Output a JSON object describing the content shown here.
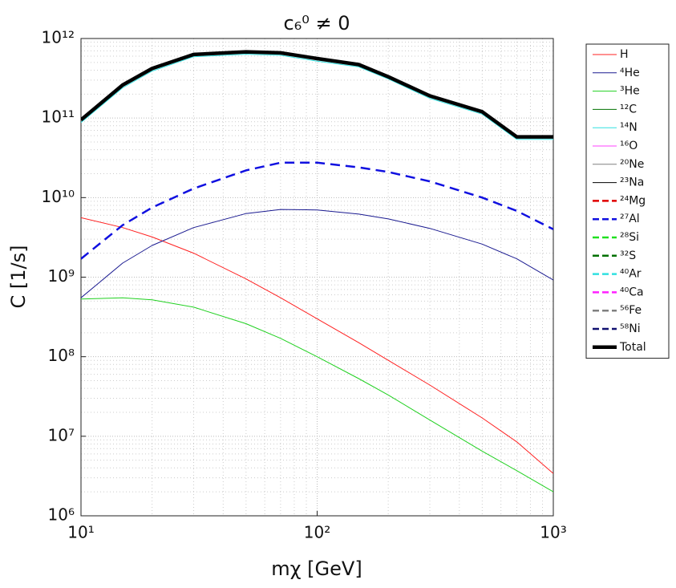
{
  "chart_data": {
    "type": "line",
    "title": "c₆⁰ ≠ 0",
    "x_label": "mχ [GeV]",
    "y_label": "C [1/s]",
    "x": [
      10,
      15,
      20,
      30,
      50,
      70,
      100,
      150,
      200,
      300,
      500,
      700,
      1000
    ],
    "xscale": "log",
    "yscale": "log",
    "grid": true,
    "legend": "outside right",
    "xlim": [
      10,
      1000
    ],
    "xticks": [
      {
        "value": 10,
        "label": "10¹"
      },
      {
        "value": 100,
        "label": "10²"
      },
      {
        "value": 1000,
        "label": "10³"
      }
    ],
    "ylim": [
      1000000,
      1000000000000
    ],
    "yticks": [
      {
        "value": 1000000,
        "label": "10⁶"
      },
      {
        "value": 10000000,
        "label": "10⁷"
      },
      {
        "value": 100000000,
        "label": "10⁸"
      },
      {
        "value": 1000000000,
        "label": "10⁹"
      },
      {
        "value": 10000000000,
        "label": "10¹⁰"
      },
      {
        "value": 100000000000,
        "label": "10¹¹"
      },
      {
        "value": 1000000000000,
        "label": "10¹²"
      }
    ],
    "series": [
      {
        "name": "H",
        "color": "#ff2020",
        "dashed": false,
        "width": 1,
        "values": [
          5600000000,
          4200000000,
          3200000000,
          2000000000,
          950000000,
          550000000,
          300000000,
          150000000,
          90000000,
          44000000,
          17000000,
          8500000,
          3400000
        ]
      },
      {
        "name": "⁴He",
        "color": "#1a1a90",
        "dashed": false,
        "width": 1,
        "values": [
          550000000,
          1500000000,
          2500000000,
          4200000000,
          6300000000,
          7100000000,
          7000000000,
          6200000000,
          5400000000,
          4100000000,
          2600000000,
          1700000000,
          920000000
        ]
      },
      {
        "name": "³He",
        "color": "#20d020",
        "dashed": false,
        "width": 1,
        "values": [
          530000000,
          550000000,
          520000000,
          420000000,
          260000000,
          170000000,
          100000000,
          53000000,
          33000000,
          16000000,
          6500000,
          3700000,
          2000000
        ]
      },
      {
        "name": "¹²C",
        "color": "#007000",
        "dashed": false,
        "width": 1,
        "values": [
          null,
          null,
          null,
          null,
          null,
          null,
          null,
          null,
          null,
          null,
          null,
          null,
          null
        ]
      },
      {
        "name": "¹⁴N",
        "color": "#30e0e0",
        "dashed": false,
        "width": 1,
        "values": [
          88000000000,
          240000000000,
          390000000000,
          590000000000,
          635000000000,
          615000000000,
          520000000000,
          440000000000,
          310000000000,
          177000000000,
          112000000000,
          54000000000,
          54000000000
        ]
      },
      {
        "name": "¹⁶O",
        "color": "#ff40ff",
        "dashed": false,
        "width": 1,
        "values": [
          null,
          null,
          null,
          null,
          null,
          null,
          null,
          null,
          null,
          null,
          null,
          null,
          null
        ]
      },
      {
        "name": "²⁰Ne",
        "color": "#808080",
        "dashed": false,
        "width": 1,
        "values": [
          null,
          null,
          null,
          null,
          null,
          null,
          null,
          null,
          null,
          null,
          null,
          null,
          null
        ]
      },
      {
        "name": "²³Na",
        "color": "#000000",
        "dashed": false,
        "width": 1,
        "values": [
          null,
          null,
          null,
          null,
          null,
          null,
          null,
          null,
          null,
          null,
          null,
          null,
          null
        ]
      },
      {
        "name": "²⁴Mg",
        "color": "#e00000",
        "dashed": true,
        "width": 2.5,
        "values": [
          null,
          null,
          null,
          null,
          null,
          null,
          null,
          null,
          null,
          null,
          null,
          null,
          null
        ]
      },
      {
        "name": "²⁷Al",
        "color": "#1010e0",
        "dashed": true,
        "width": 2.5,
        "values": [
          1700000000,
          4500000000,
          7500000000,
          13000000000,
          22000000000,
          27500000000,
          27500000000,
          24000000000,
          21000000000,
          16000000000,
          10000000000,
          6800000000,
          4000000000
        ]
      },
      {
        "name": "²⁸Si",
        "color": "#20e020",
        "dashed": true,
        "width": 2.5,
        "values": [
          null,
          null,
          null,
          null,
          null,
          null,
          null,
          null,
          null,
          null,
          null,
          null,
          null
        ]
      },
      {
        "name": "³²S",
        "color": "#007000",
        "dashed": true,
        "width": 2.5,
        "values": [
          null,
          null,
          null,
          null,
          null,
          null,
          null,
          null,
          null,
          null,
          null,
          null,
          null
        ]
      },
      {
        "name": "⁴⁰Ar",
        "color": "#30e0e0",
        "dashed": true,
        "width": 2.5,
        "values": [
          null,
          null,
          null,
          null,
          null,
          null,
          null,
          null,
          null,
          null,
          null,
          null,
          null
        ]
      },
      {
        "name": "⁴⁰Ca",
        "color": "#ff20ff",
        "dashed": true,
        "width": 2.5,
        "values": [
          null,
          null,
          null,
          null,
          null,
          null,
          null,
          null,
          null,
          null,
          null,
          null,
          null
        ]
      },
      {
        "name": "⁵⁶Fe",
        "color": "#808080",
        "dashed": true,
        "width": 2.5,
        "values": [
          null,
          null,
          null,
          null,
          null,
          null,
          null,
          null,
          null,
          null,
          null,
          null,
          null
        ]
      },
      {
        "name": "⁵⁸Ni",
        "color": "#101070",
        "dashed": true,
        "width": 2.5,
        "values": [
          null,
          null,
          null,
          null,
          null,
          null,
          null,
          null,
          null,
          null,
          null,
          null,
          null
        ]
      },
      {
        "name": "Total",
        "color": "#000000",
        "dashed": false,
        "width": 4.5,
        "values": [
          95000000000,
          260000000000,
          420000000000,
          630000000000,
          680000000000,
          660000000000,
          560000000000,
          470000000000,
          330000000000,
          190000000000,
          120000000000,
          58000000000,
          58000000000
        ]
      }
    ]
  }
}
